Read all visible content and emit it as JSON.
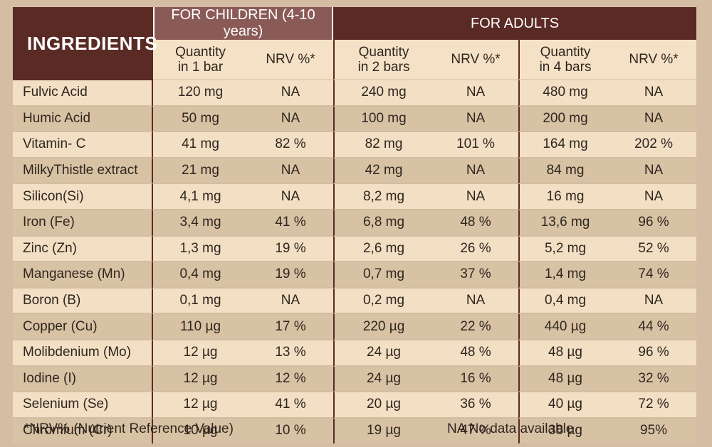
{
  "header": {
    "ingredients": "INGREDIENTS",
    "children_group": "FOR CHILDREN (4-10 years)",
    "adults_group": "FOR ADULTS",
    "sub": [
      [
        "Quantity",
        "in 1 bar"
      ],
      [
        "NRV %*"
      ],
      [
        "Quantity",
        "in 2 bars"
      ],
      [
        "NRV %*"
      ],
      [
        "Quantity",
        "in 4 bars"
      ],
      [
        "NRV %*"
      ]
    ]
  },
  "rows": [
    [
      "Fulvic Acid",
      "120 mg",
      "NA",
      "240 mg",
      "NA",
      "480 mg",
      "NA"
    ],
    [
      "Humic Acid",
      "50 mg",
      "NA",
      "100 mg",
      "NA",
      "200 mg",
      "NA"
    ],
    [
      "Vitamin- C",
      "41 mg",
      "82 %",
      "82 mg",
      "101 %",
      "164 mg",
      "202 %"
    ],
    [
      "MilkyThistle extract",
      "21 mg",
      "NA",
      "42 mg",
      "NA",
      "84 mg",
      "NA"
    ],
    [
      "Silicon(Si)",
      "4,1 mg",
      "NA",
      "8,2 mg",
      "NA",
      "16 mg",
      "NA"
    ],
    [
      "Iron (Fe)",
      "3,4 mg",
      "41 %",
      "6,8 mg",
      "48 %",
      "13,6 mg",
      "96 %"
    ],
    [
      "Zinc (Zn)",
      "1,3 mg",
      "19 %",
      "2,6 mg",
      "26 %",
      "5,2 mg",
      "52 %"
    ],
    [
      "Manganese (Mn)",
      "0,4 mg",
      "19 %",
      "0,7 mg",
      "37 %",
      "1,4 mg",
      "74 %"
    ],
    [
      "Boron (B)",
      "0,1 mg",
      "NA",
      "0,2 mg",
      "NA",
      "0,4 mg",
      "NA"
    ],
    [
      "Copper (Cu)",
      "110 µg",
      "17 %",
      "220 µg",
      "22 %",
      "440 µg",
      "44 %"
    ],
    [
      "Molibdenium (Mo)",
      "12 µg",
      "13 %",
      "24 µg",
      "48 %",
      "48 µg",
      "96 %"
    ],
    [
      "Iodine (I)",
      "12 µg",
      "12 %",
      "24 µg",
      "16 %",
      "48 µg",
      "32 %"
    ],
    [
      "Selenium (Se)",
      "12 µg",
      "41 %",
      "20 µg",
      "36 %",
      "40 µg",
      "72 %"
    ],
    [
      "Chromium (Cr)",
      "10 µg",
      "10 %",
      "19 µg",
      "47 %",
      "38 µg",
      "95%"
    ]
  ],
  "footer": {
    "nrv_note": "*NRV% (Nutrient Reference Value)",
    "na_note": "NA  No data available"
  }
}
